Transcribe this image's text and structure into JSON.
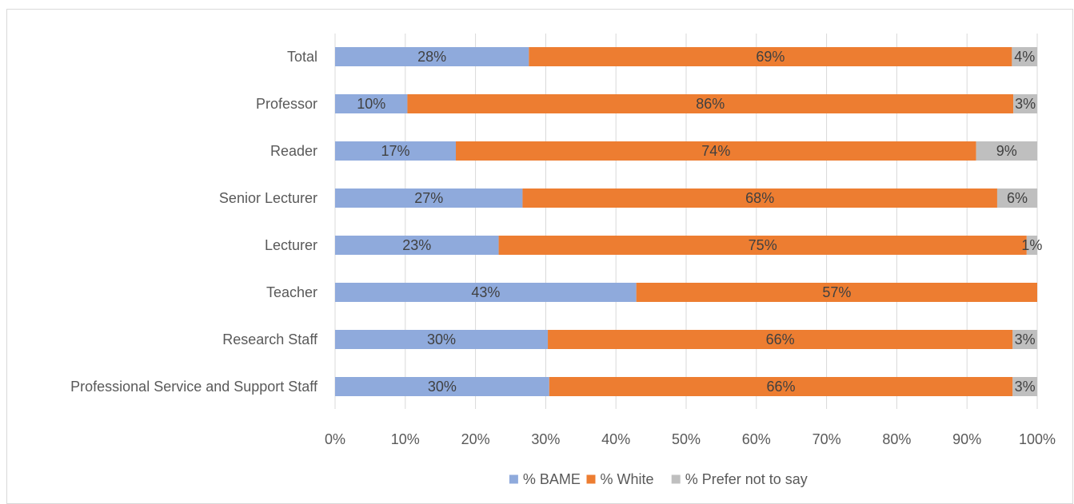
{
  "chart_data": {
    "type": "bar",
    "orientation": "horizontal",
    "stacked": true,
    "percent_stacked": true,
    "categories": [
      "Total",
      "Professor",
      "Reader",
      "Senior Lecturer",
      "Lecturer",
      "Teacher",
      "Research Staff",
      "Professional Service and Support Staff"
    ],
    "series": [
      {
        "name": "% BAME",
        "color": "#8faadc",
        "values": [
          27.6,
          10.3,
          17.2,
          26.7,
          23.3,
          42.9,
          30.3,
          30.5
        ],
        "labels": [
          "28%",
          "10%",
          "17%",
          "27%",
          "23%",
          "43%",
          "30%",
          "30%"
        ]
      },
      {
        "name": "% White",
        "color": "#ed7d31",
        "values": [
          68.8,
          86.3,
          74.1,
          67.6,
          75.2,
          57.1,
          66.2,
          66.0
        ],
        "labels": [
          "69%",
          "86%",
          "74%",
          "68%",
          "75%",
          "57%",
          "66%",
          "66%"
        ]
      },
      {
        "name": "% Prefer not to say",
        "color": "#bfbfbf",
        "values": [
          3.6,
          3.4,
          8.7,
          5.7,
          1.5,
          0,
          3.5,
          3.5
        ],
        "labels": [
          "4%",
          "3%",
          "9%",
          "6%",
          "1%",
          "",
          "3%",
          "3%"
        ]
      }
    ],
    "x_ticks": [
      "0%",
      "10%",
      "20%",
      "30%",
      "40%",
      "50%",
      "60%",
      "70%",
      "80%",
      "90%",
      "100%"
    ],
    "xlim": [
      0,
      100
    ],
    "title": "",
    "xlabel": "",
    "ylabel": "",
    "grid": true,
    "legend_position": "bottom"
  }
}
